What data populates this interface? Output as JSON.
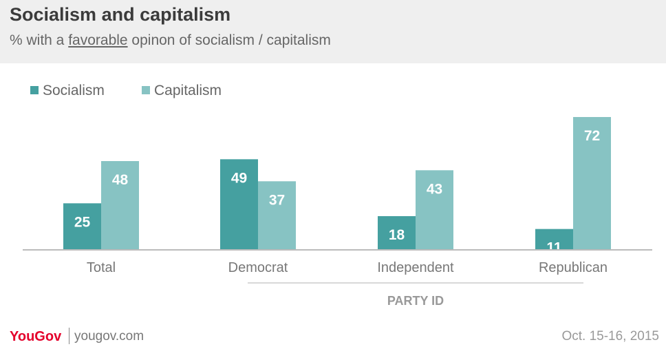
{
  "header": {
    "title": "Socialism and capitalism",
    "subtitle_pre": "% with a ",
    "subtitle_underlined": "favorable",
    "subtitle_post": " opinon of socialism / capitalism"
  },
  "colors": {
    "socialism": "#45a0a0",
    "capitalism": "#87c3c3",
    "axis": "#bbbbbb",
    "brand": "#e4002b"
  },
  "chart_data": {
    "type": "bar",
    "categories": [
      "Total",
      "Democrat",
      "Independent",
      "Republican"
    ],
    "series": [
      {
        "name": "Socialism",
        "values": [
          25,
          49,
          18,
          11
        ]
      },
      {
        "name": "Capitalism",
        "values": [
          48,
          37,
          43,
          72
        ]
      }
    ],
    "group_label": "PARTY ID",
    "ylim": [
      0,
      72
    ],
    "legend": "top-left",
    "grid": false
  },
  "footer": {
    "brand": "YouGov",
    "site": "yougov.com",
    "date": "Oct. 15-16, 2015"
  }
}
